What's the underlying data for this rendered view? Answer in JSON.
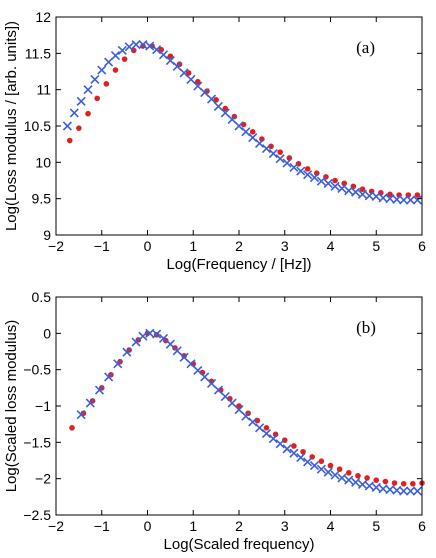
{
  "chart_data": [
    {
      "type": "scatter",
      "panel_label": "(a)",
      "xlabel": "Log(Frequency / [Hz])",
      "ylabel": "Log(Loss modulus / [arb. units])",
      "xlim": [
        -2,
        6
      ],
      "ylim": [
        9,
        12
      ],
      "xticks": [
        -2,
        -1,
        0,
        1,
        2,
        3,
        4,
        5,
        6
      ],
      "yticks": [
        9,
        9.5,
        10,
        10.5,
        11,
        11.5,
        12
      ],
      "xtick_labels": [
        "−2",
        "−1",
        "0",
        "1",
        "2",
        "3",
        "4",
        "5",
        "6"
      ],
      "ytick_labels": [
        "9",
        "9.5",
        "10",
        "10.5",
        "11",
        "11.5",
        "12"
      ],
      "grid": false,
      "series": [
        {
          "marker": "dot",
          "color": "#e02020",
          "x": [
            -1.7,
            -1.5,
            -1.3,
            -1.1,
            -0.9,
            -0.7,
            -0.5,
            -0.3,
            -0.1,
            0.1,
            0.3,
            0.5,
            0.7,
            0.9,
            1.1,
            1.3,
            1.5,
            1.7,
            1.9,
            2.1,
            2.3,
            2.5,
            2.7,
            2.9,
            3.1,
            3.3,
            3.5,
            3.7,
            3.9,
            4.1,
            4.3,
            4.5,
            4.7,
            4.9,
            5.1,
            5.3,
            5.5,
            5.7,
            5.9
          ],
          "y": [
            10.3,
            10.47,
            10.67,
            10.88,
            11.08,
            11.27,
            11.42,
            11.54,
            11.6,
            11.6,
            11.55,
            11.46,
            11.35,
            11.23,
            11.11,
            10.98,
            10.86,
            10.74,
            10.63,
            10.52,
            10.42,
            10.32,
            10.22,
            10.14,
            10.06,
            9.98,
            9.91,
            9.85,
            9.8,
            9.75,
            9.71,
            9.67,
            9.63,
            9.6,
            9.58,
            9.56,
            9.55,
            9.55,
            9.55
          ]
        },
        {
          "marker": "cross",
          "color": "#3a5fd9",
          "x": [
            -1.75,
            -1.6,
            -1.45,
            -1.3,
            -1.15,
            -1.0,
            -0.85,
            -0.7,
            -0.55,
            -0.4,
            -0.25,
            -0.1,
            0.05,
            0.2,
            0.35,
            0.5,
            0.65,
            0.8,
            0.95,
            1.1,
            1.25,
            1.4,
            1.55,
            1.7,
            1.85,
            2.0,
            2.15,
            2.3,
            2.45,
            2.6,
            2.75,
            2.9,
            3.05,
            3.2,
            3.35,
            3.5,
            3.65,
            3.8,
            3.95,
            4.1,
            4.25,
            4.4,
            4.55,
            4.7,
            4.85,
            5.0,
            5.15,
            5.3,
            5.45,
            5.6,
            5.75,
            5.9
          ],
          "y": [
            10.5,
            10.68,
            10.84,
            11.0,
            11.14,
            11.27,
            11.38,
            11.47,
            11.54,
            11.59,
            11.62,
            11.62,
            11.6,
            11.55,
            11.48,
            11.4,
            11.32,
            11.23,
            11.14,
            11.05,
            10.96,
            10.87,
            10.77,
            10.68,
            10.59,
            10.5,
            10.42,
            10.34,
            10.26,
            10.19,
            10.12,
            10.05,
            9.99,
            9.93,
            9.88,
            9.83,
            9.79,
            9.74,
            9.71,
            9.67,
            9.64,
            9.61,
            9.59,
            9.56,
            9.54,
            9.53,
            9.51,
            9.5,
            9.49,
            9.48,
            9.48,
            9.48
          ]
        }
      ]
    },
    {
      "type": "scatter",
      "panel_label": "(b)",
      "xlabel": "Log(Scaled frequency)",
      "ylabel": "Log(Scaled loss modulus)",
      "xlim": [
        -2,
        6
      ],
      "ylim": [
        -2.5,
        0.5
      ],
      "xticks": [
        -2,
        -1,
        0,
        1,
        2,
        3,
        4,
        5,
        6
      ],
      "yticks": [
        -2.5,
        -2,
        -1.5,
        -1,
        -0.5,
        0,
        0.5
      ],
      "xtick_labels": [
        "−2",
        "−1",
        "0",
        "1",
        "2",
        "3",
        "4",
        "5",
        "6"
      ],
      "ytick_labels": [
        "−2.5",
        "−2",
        "−1.5",
        "−1",
        "−0.5",
        "0",
        "0.5"
      ],
      "grid": false,
      "series": [
        {
          "marker": "dot",
          "color": "#e02020",
          "x": [
            -1.65,
            -1.4,
            -1.2,
            -1.0,
            -0.8,
            -0.6,
            -0.4,
            -0.2,
            0.0,
            0.2,
            0.4,
            0.6,
            0.8,
            1.0,
            1.2,
            1.4,
            1.6,
            1.8,
            2.0,
            2.2,
            2.4,
            2.6,
            2.8,
            3.0,
            3.2,
            3.4,
            3.6,
            3.8,
            4.0,
            4.2,
            4.4,
            4.6,
            4.8,
            5.0,
            5.2,
            5.4,
            5.6,
            5.8,
            6.0
          ],
          "y": [
            -1.3,
            -1.1,
            -0.93,
            -0.75,
            -0.57,
            -0.39,
            -0.23,
            -0.09,
            0.0,
            -0.02,
            -0.1,
            -0.2,
            -0.31,
            -0.42,
            -0.54,
            -0.66,
            -0.78,
            -0.9,
            -1.0,
            -1.1,
            -1.2,
            -1.3,
            -1.39,
            -1.47,
            -1.55,
            -1.63,
            -1.7,
            -1.76,
            -1.82,
            -1.87,
            -1.92,
            -1.96,
            -1.99,
            -2.02,
            -2.04,
            -2.06,
            -2.07,
            -2.07,
            -2.06
          ]
        },
        {
          "marker": "cross",
          "color": "#3a5fd9",
          "x": [
            -1.45,
            -1.25,
            -1.05,
            -0.85,
            -0.65,
            -0.45,
            -0.25,
            -0.1,
            0.05,
            0.2,
            0.35,
            0.5,
            0.65,
            0.8,
            0.95,
            1.1,
            1.25,
            1.4,
            1.55,
            1.7,
            1.85,
            2.0,
            2.15,
            2.3,
            2.45,
            2.6,
            2.75,
            2.9,
            3.05,
            3.2,
            3.35,
            3.5,
            3.65,
            3.8,
            3.95,
            4.1,
            4.25,
            4.4,
            4.55,
            4.7,
            4.85,
            5.0,
            5.15,
            5.3,
            5.45,
            5.6,
            5.75,
            5.9
          ],
          "y": [
            -1.12,
            -0.96,
            -0.78,
            -0.6,
            -0.42,
            -0.26,
            -0.12,
            -0.04,
            0.0,
            -0.01,
            -0.07,
            -0.15,
            -0.24,
            -0.33,
            -0.42,
            -0.51,
            -0.6,
            -0.69,
            -0.78,
            -0.87,
            -0.96,
            -1.05,
            -1.14,
            -1.22,
            -1.3,
            -1.38,
            -1.45,
            -1.52,
            -1.59,
            -1.65,
            -1.71,
            -1.77,
            -1.82,
            -1.87,
            -1.91,
            -1.95,
            -1.99,
            -2.02,
            -2.05,
            -2.08,
            -2.1,
            -2.12,
            -2.14,
            -2.15,
            -2.16,
            -2.17,
            -2.17,
            -2.17
          ]
        }
      ]
    }
  ]
}
